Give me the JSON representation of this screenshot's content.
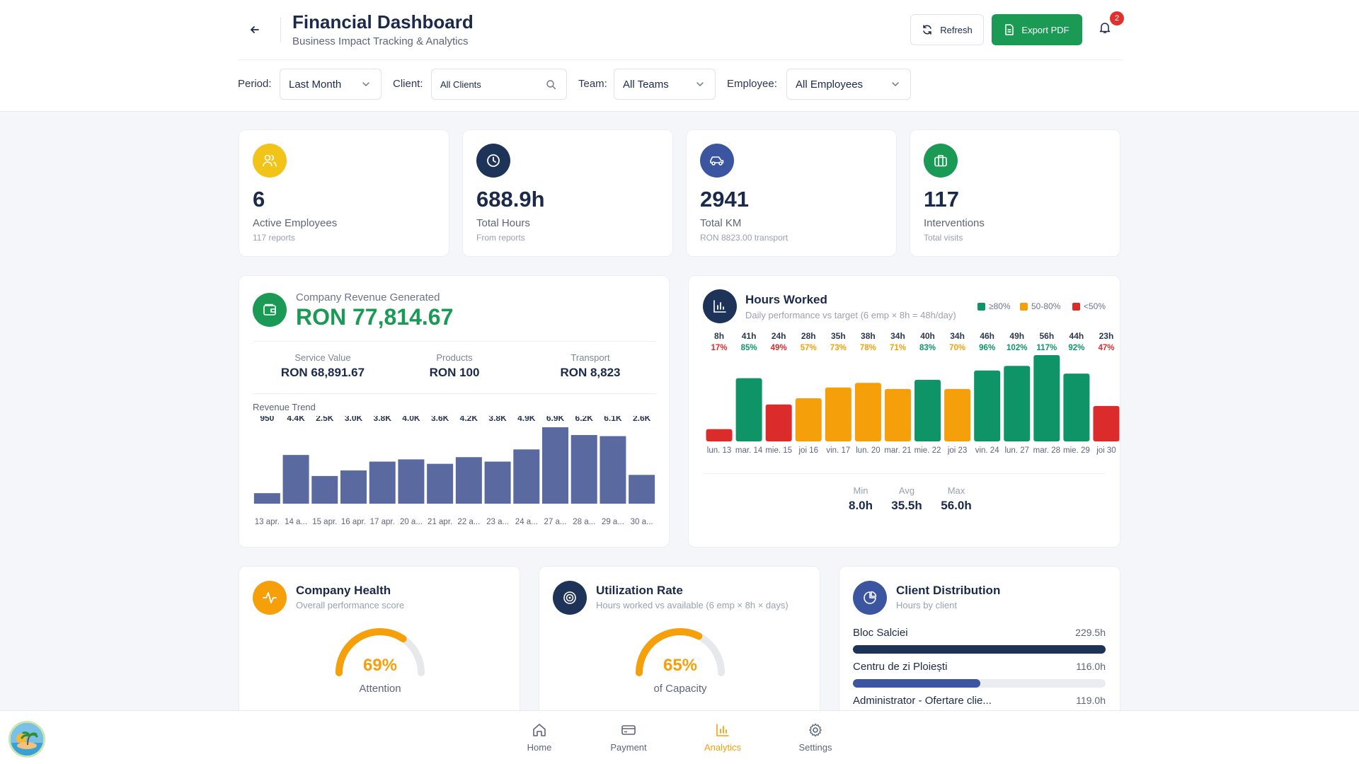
{
  "header": {
    "title": "Financial Dashboard",
    "subtitle": "Business Impact Tracking & Analytics",
    "refresh_label": "Refresh",
    "export_label": "Export PDF",
    "notification_count": "2",
    "colors": {
      "export": "#1a9a55",
      "badge": "#e03131"
    }
  },
  "filters": {
    "period_label": "Period:",
    "period_value": "Last Month",
    "client_label": "Client:",
    "client_value": "All Clients",
    "team_label": "Team:",
    "team_value": "All Teams",
    "employee_label": "Employee:",
    "employee_value": "All Employees"
  },
  "stats": [
    {
      "icon": "users-icon",
      "color": "#f2c318",
      "value": "6",
      "label": "Active Employees",
      "sub": "117 reports"
    },
    {
      "icon": "clock-icon",
      "color": "#1e3358",
      "value": "688.9h",
      "label": "Total Hours",
      "sub": "From reports"
    },
    {
      "icon": "car-icon",
      "color": "#3b55a0",
      "value": "2941",
      "label": "Total KM",
      "sub": "RON 8823.00 transport"
    },
    {
      "icon": "briefcase-icon",
      "color": "#1a9a55",
      "value": "117",
      "label": "Interventions",
      "sub": "Total visits"
    }
  ],
  "revenue": {
    "label": "Company Revenue Generated",
    "value": "RON 77,814.67",
    "breakdown": [
      {
        "label": "Service Value",
        "value": "RON 68,891.67"
      },
      {
        "label": "Products",
        "value": "RON 100"
      },
      {
        "label": "Transport",
        "value": "RON 8,823"
      }
    ],
    "trend_title": "Revenue Trend"
  },
  "hours": {
    "title": "Hours Worked",
    "subtitle": "Daily performance vs target (6 emp × 8h = 48h/day)",
    "legend": [
      {
        "label": "≥80%",
        "color": "#0e9467"
      },
      {
        "label": "50-80%",
        "color": "#f59f0b"
      },
      {
        "label": "<50%",
        "color": "#dc2b2b"
      }
    ],
    "min_label": "Min",
    "min_value": "8.0h",
    "avg_label": "Avg",
    "avg_value": "35.5h",
    "max_label": "Max",
    "max_value": "56.0h"
  },
  "health": {
    "title": "Company Health",
    "subtitle": "Overall performance score",
    "percent_text": "69%",
    "percent": 69,
    "label": "Attention"
  },
  "utilization": {
    "title": "Utilization Rate",
    "subtitle": "Hours worked vs available (6 emp × 8h × days)",
    "percent_text": "65%",
    "percent": 65,
    "label": "of Capacity"
  },
  "clients": {
    "title": "Client Distribution",
    "subtitle": "Hours by client",
    "items": [
      {
        "name": "Bloc Salciei",
        "value": "229.5h",
        "hours": 229.5,
        "color": "#1e3358"
      },
      {
        "name": "Centru de zi Ploiești",
        "value": "116.0h",
        "hours": 116.0,
        "color": "#3b55a0"
      },
      {
        "name": "Administrator - Ofertare clie...",
        "value": "119.0h",
        "hours": 119.0,
        "color": "#5a6bb0"
      }
    ]
  },
  "nav": {
    "items": [
      {
        "label": "Home",
        "icon": "home-icon"
      },
      {
        "label": "Payment",
        "icon": "card-icon"
      },
      {
        "label": "Analytics",
        "icon": "bar-chart-icon"
      },
      {
        "label": "Settings",
        "icon": "gear-icon"
      }
    ],
    "active_color": "#f59f0b"
  },
  "chart_data": [
    {
      "type": "bar",
      "title": "Revenue Trend",
      "categories": [
        "13 apr.",
        "14 a...",
        "15 apr.",
        "16 apr.",
        "17 apr.",
        "20 a...",
        "21 apr.",
        "22 a...",
        "23 a...",
        "24 a...",
        "27 a...",
        "28 a...",
        "29 a...",
        "30 a..."
      ],
      "value_labels": [
        "950",
        "4.4K",
        "2.5K",
        "3.0K",
        "3.8K",
        "4.0K",
        "3.6K",
        "4.2K",
        "3.8K",
        "4.9K",
        "6.9K",
        "6.2K",
        "6.1K",
        "2.6K"
      ],
      "values": [
        950,
        4400,
        2500,
        3000,
        3800,
        4000,
        3600,
        4200,
        3800,
        4900,
        6900,
        6200,
        6100,
        2600
      ],
      "ylim": [
        0,
        6900
      ],
      "color": "#5a6aa0"
    },
    {
      "type": "bar",
      "title": "Hours Worked",
      "categories": [
        "lun. 13",
        "mar. 14",
        "mie. 15",
        "joi 16",
        "vin. 17",
        "lun. 20",
        "mar. 21",
        "mie. 22",
        "joi 23",
        "vin. 24",
        "lun. 27",
        "mar. 28",
        "mie. 29",
        "joi 30"
      ],
      "value_labels": [
        "8h",
        "41h",
        "24h",
        "28h",
        "35h",
        "38h",
        "34h",
        "40h",
        "34h",
        "46h",
        "49h",
        "56h",
        "44h",
        "23h"
      ],
      "values": [
        8,
        41,
        24,
        28,
        35,
        38,
        34,
        40,
        34,
        46,
        49,
        56,
        44,
        23
      ],
      "percent_labels": [
        "17%",
        "85%",
        "49%",
        "57%",
        "73%",
        "78%",
        "71%",
        "83%",
        "70%",
        "96%",
        "102%",
        "117%",
        "92%",
        "47%"
      ],
      "percent": [
        17,
        85,
        49,
        57,
        73,
        78,
        71,
        83,
        70,
        96,
        102,
        117,
        92,
        47
      ],
      "ylim": [
        0,
        56
      ],
      "target": 48
    }
  ]
}
